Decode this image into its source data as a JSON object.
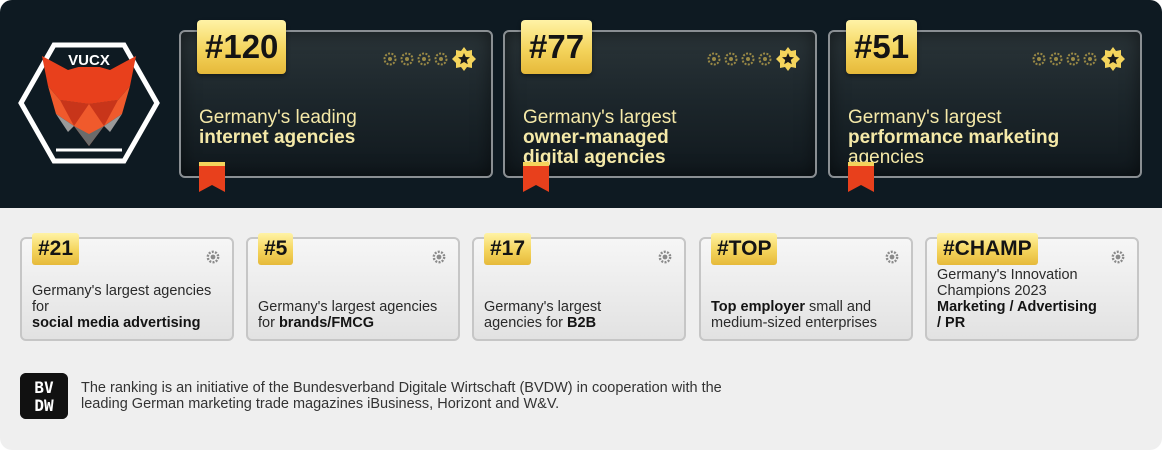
{
  "logo": {
    "text": "VUCX",
    "icon": "fox-hexagon-logo"
  },
  "top_cards": [
    {
      "rank": "#120",
      "line1": "Germany's leading",
      "bold": "internet agencies",
      "line_after": ""
    },
    {
      "rank": "#77",
      "line1": "Germany's largest",
      "bold": "owner-managed digital agencies",
      "line_after": ""
    },
    {
      "rank": "#51",
      "line1": "Germany's largest",
      "bold": "performance marketing",
      "line_after": "agencies"
    }
  ],
  "bottom_cards": [
    {
      "rank": "#21",
      "pre": "Germany's largest agencies for",
      "bold": "social media advertising",
      "post": ""
    },
    {
      "rank": "#5",
      "pre": "Germany's largest agencies for",
      "bold": "brands/FMCG",
      "post": ""
    },
    {
      "rank": "#17",
      "pre": "Germany's largest agencies for",
      "bold": "B2B",
      "post": ""
    },
    {
      "rank": "#TOP",
      "pre": "",
      "bold": "Top employer",
      "post": "small and medium-sized enterprises"
    },
    {
      "rank": "#CHAMP",
      "pre": "Germany's Innovation Champions 2023",
      "bold": "Marketing / Advertising / PR",
      "post": ""
    }
  ],
  "footer": {
    "logo": "BVDW",
    "text": "The ranking is an initiative of the Bundesverband Digitale Wirtschaft (BVDW) in cooperation with the leading German marketing trade magazines iBusiness, Horizont and W&V."
  },
  "colors": {
    "dark_bg": "#0e1a22",
    "gold": "#f4d45c",
    "ribbon": "#e8401c",
    "light_bg": "#efefef"
  }
}
